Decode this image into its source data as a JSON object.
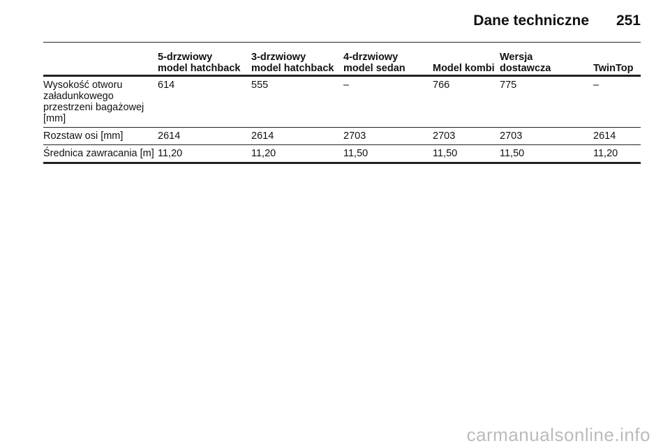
{
  "header": {
    "title": "Dane techniczne",
    "page_number": "251"
  },
  "table": {
    "columns": [
      [],
      [
        "5-drzwiowy",
        "model hatchback"
      ],
      [
        "3-drzwiowy",
        "model hatchback"
      ],
      [
        "4-drzwiowy",
        "model sedan"
      ],
      [
        "Model kombi"
      ],
      [
        "Wersja",
        "dostawcza"
      ],
      [
        "TwinTop"
      ]
    ],
    "rows": [
      [
        "Wysokość otworu załadunkowego przestrzeni bagażowej [mm]",
        "614",
        "555",
        "–",
        "766",
        "775",
        "–"
      ],
      [
        "Rozstaw osi [mm]",
        "2614",
        "2614",
        "2703",
        "2703",
        "2703",
        "2614"
      ],
      [
        "Średnica zawracania [m]",
        "11,20",
        "11,20",
        "11,50",
        "11,50",
        "11,50",
        "11,20"
      ]
    ]
  },
  "watermark": "carmanualsonline.info"
}
